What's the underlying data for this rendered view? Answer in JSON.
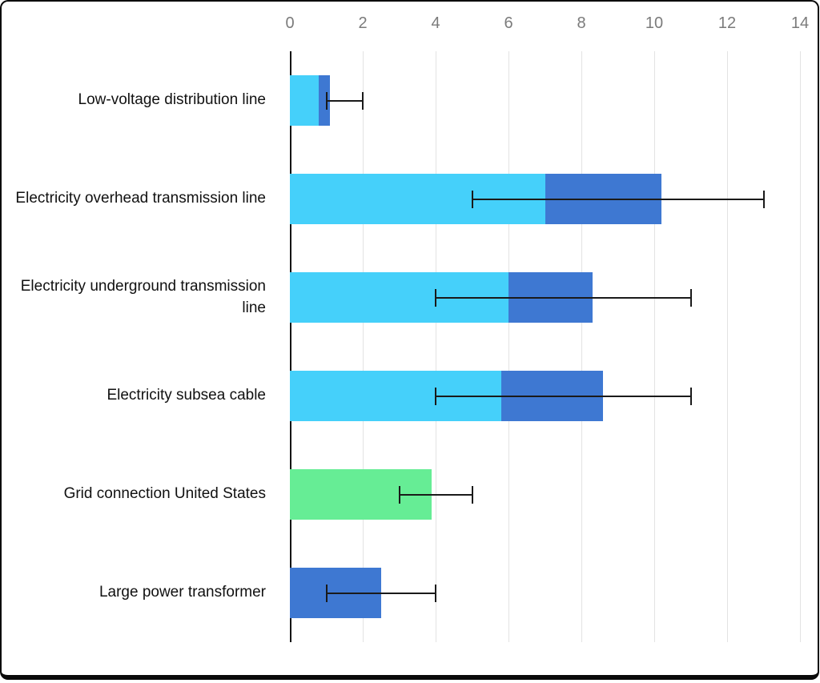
{
  "page": {
    "background": "#ffffff",
    "frame_border_color": "#0a0a0a"
  },
  "chart_data": {
    "type": "bar",
    "orientation": "horizontal",
    "stacked": true,
    "title": "",
    "xlabel": "",
    "ylabel": "",
    "grid": true,
    "legend": "none",
    "x_ticks": [
      0,
      2,
      4,
      6,
      8,
      10,
      12,
      14
    ],
    "xlim": [
      0,
      14.3
    ],
    "colors": {
      "segment_low": "#45D0FA",
      "segment_high": "#3E78D2",
      "grid_connection": "#66ED95",
      "transformer": "#3E78D2",
      "error_bar": "#1a1a1a",
      "gridline": "#e3e3e3",
      "tick_label": "#7b7b7b",
      "category_label": "#111111"
    },
    "categories": [
      "Low-voltage distribution line",
      "Electricity overhead transmission line",
      "Electricity underground transmission line",
      "Electricity subsea cable",
      "Grid connection United States",
      "Large power transformer"
    ],
    "bars": [
      {
        "label": "Low-voltage distribution line",
        "segments": [
          {
            "name": "typical-low",
            "value": 0.8,
            "color": "#45D0FA"
          },
          {
            "name": "typical-high",
            "value": 0.3,
            "color": "#3E78D2"
          }
        ],
        "total": 1.1,
        "error": {
          "low": 1.0,
          "high": 2.0
        }
      },
      {
        "label": "Electricity overhead transmission line",
        "segments": [
          {
            "name": "typical-low",
            "value": 7.0,
            "color": "#45D0FA"
          },
          {
            "name": "typical-high",
            "value": 3.2,
            "color": "#3E78D2"
          }
        ],
        "total": 10.2,
        "error": {
          "low": 5.0,
          "high": 13.0
        }
      },
      {
        "label": "Electricity underground transmission line",
        "segments": [
          {
            "name": "typical-low",
            "value": 6.0,
            "color": "#45D0FA"
          },
          {
            "name": "typical-high",
            "value": 2.3,
            "color": "#3E78D2"
          }
        ],
        "total": 8.3,
        "error": {
          "low": 4.0,
          "high": 11.0
        }
      },
      {
        "label": "Electricity subsea cable",
        "segments": [
          {
            "name": "typical-low",
            "value": 5.8,
            "color": "#45D0FA"
          },
          {
            "name": "typical-high",
            "value": 2.8,
            "color": "#3E78D2"
          }
        ],
        "total": 8.6,
        "error": {
          "low": 4.0,
          "high": 11.0
        }
      },
      {
        "label": "Grid connection United States",
        "segments": [
          {
            "name": "grid-connection-us",
            "value": 3.9,
            "color": "#66ED95"
          }
        ],
        "total": 3.9,
        "error": {
          "low": 3.0,
          "high": 5.0
        }
      },
      {
        "label": "Large power transformer",
        "segments": [
          {
            "name": "large-power-transformer",
            "value": 2.5,
            "color": "#3E78D2"
          }
        ],
        "total": 2.5,
        "error": {
          "low": 1.0,
          "high": 4.0
        }
      }
    ]
  }
}
